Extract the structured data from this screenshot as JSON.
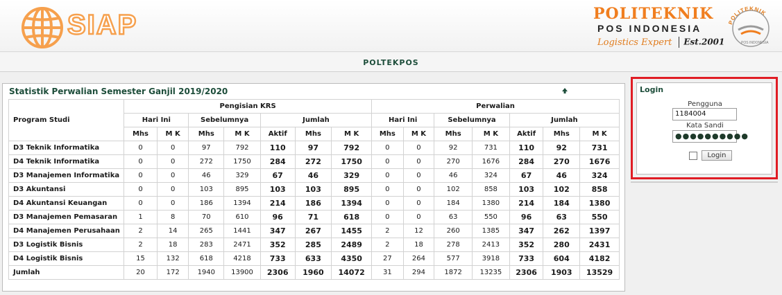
{
  "header": {
    "app_logo_text": "SIAP",
    "institution_line1": "POLITEKNIK",
    "institution_line2": "POS INDONESIA",
    "tagline": "Logistics Expert",
    "established": "Est.2001",
    "seal_text": "POLITEKNIK POS INDONESIA",
    "logo_orange": "#f6a04d"
  },
  "nav": {
    "brand": "POLTEKPOS"
  },
  "stats": {
    "title": "Statistik Perwalian Semester Ganjil 2019/2020",
    "header": {
      "program_studi": "Program Studi",
      "pengisian_krs": "Pengisian KRS",
      "perwalian": "Perwalian",
      "hari_ini": "Hari Ini",
      "sebelumnya": "Sebelumnya",
      "jumlah": "Jumlah",
      "mhs": "Mhs",
      "mk": "M K",
      "aktif": "Aktif"
    },
    "rows": [
      {
        "prodi": "D3 Teknik Informatika",
        "krs": [
          "0",
          "0",
          "97",
          "792",
          "110",
          "97",
          "792"
        ],
        "per": [
          "0",
          "0",
          "92",
          "731",
          "110",
          "92",
          "731"
        ]
      },
      {
        "prodi": "D4 Teknik Informatika",
        "krs": [
          "0",
          "0",
          "272",
          "1750",
          "284",
          "272",
          "1750"
        ],
        "per": [
          "0",
          "0",
          "270",
          "1676",
          "284",
          "270",
          "1676"
        ]
      },
      {
        "prodi": "D3 Manajemen Informatika",
        "krs": [
          "0",
          "0",
          "46",
          "329",
          "67",
          "46",
          "329"
        ],
        "per": [
          "0",
          "0",
          "46",
          "324",
          "67",
          "46",
          "324"
        ]
      },
      {
        "prodi": "D3 Akuntansi",
        "krs": [
          "0",
          "0",
          "103",
          "895",
          "103",
          "103",
          "895"
        ],
        "per": [
          "0",
          "0",
          "102",
          "858",
          "103",
          "102",
          "858"
        ]
      },
      {
        "prodi": "D4 Akuntansi Keuangan",
        "krs": [
          "0",
          "0",
          "186",
          "1394",
          "214",
          "186",
          "1394"
        ],
        "per": [
          "0",
          "0",
          "184",
          "1380",
          "214",
          "184",
          "1380"
        ]
      },
      {
        "prodi": "D3 Manajemen Pemasaran",
        "krs": [
          "1",
          "8",
          "70",
          "610",
          "96",
          "71",
          "618"
        ],
        "per": [
          "0",
          "0",
          "63",
          "550",
          "96",
          "63",
          "550"
        ]
      },
      {
        "prodi": "D4 Manajemen Perusahaan",
        "krs": [
          "2",
          "14",
          "265",
          "1441",
          "347",
          "267",
          "1455"
        ],
        "per": [
          "2",
          "12",
          "260",
          "1385",
          "347",
          "262",
          "1397"
        ]
      },
      {
        "prodi": "D3 Logistik Bisnis",
        "krs": [
          "2",
          "18",
          "283",
          "2471",
          "352",
          "285",
          "2489"
        ],
        "per": [
          "2",
          "18",
          "278",
          "2413",
          "352",
          "280",
          "2431"
        ]
      },
      {
        "prodi": "D4 Logistik Bisnis",
        "krs": [
          "15",
          "132",
          "618",
          "4218",
          "733",
          "633",
          "4350"
        ],
        "per": [
          "27",
          "264",
          "577",
          "3918",
          "733",
          "604",
          "4182"
        ]
      }
    ],
    "total": {
      "prodi": "Jumlah",
      "krs": [
        "20",
        "172",
        "1940",
        "13900",
        "2306",
        "1960",
        "14072"
      ],
      "per": [
        "31",
        "294",
        "1872",
        "13235",
        "2306",
        "1903",
        "13529"
      ]
    }
  },
  "login": {
    "title": "Login",
    "username_label": "Pengguna",
    "username_value": "1184004",
    "password_label": "Kata Sandi",
    "password_mask": "●●●●●●●●●●",
    "button_label": "Login",
    "highlight_color": "#e01c24"
  }
}
